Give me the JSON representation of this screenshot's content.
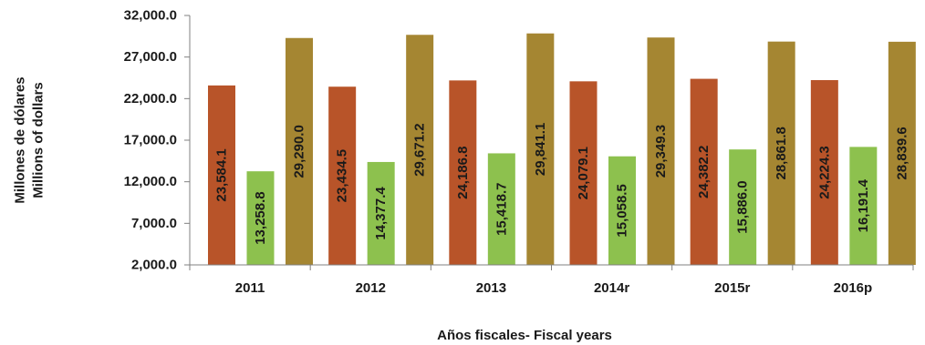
{
  "chart_data": {
    "type": "bar",
    "categories": [
      "2011",
      "2012",
      "2013",
      "2014r",
      "2015r",
      "2016p"
    ],
    "series": [
      {
        "values": [
          23584.1,
          23434.5,
          24186.8,
          24079.1,
          24382.2,
          24224.3
        ],
        "color": "#b85429"
      },
      {
        "values": [
          13258.8,
          14377.4,
          15418.7,
          15058.5,
          15886.0,
          16191.4
        ],
        "color": "#8dc14e"
      },
      {
        "values": [
          29290.0,
          29671.2,
          29841.1,
          29349.3,
          28861.8,
          28839.6
        ],
        "color": "#a58632"
      }
    ],
    "value_labels": [
      [
        "23,584.1",
        "23,434.5",
        "24,186.8",
        "24,079.1",
        "24,382.2",
        "24,224.3"
      ],
      [
        "13,258.8",
        "14,377.4",
        "15,418.7",
        "15,058.5",
        "15,886.0",
        "16,191.4"
      ],
      [
        "29,290.0",
        "29,671.2",
        "29,841.1",
        "29,349.3",
        "28,861.8",
        "28,839.6"
      ]
    ],
    "ylim": [
      2000,
      32000
    ],
    "yticks": [
      2000,
      7000,
      12000,
      17000,
      22000,
      27000,
      32000
    ],
    "ytick_labels": [
      "2,000.0",
      "7,000.0",
      "12,000.0",
      "17,000.0",
      "22,000.0",
      "27,000.0",
      "32,000.0"
    ],
    "ylabel_lines": [
      "Millones de dólares",
      "Millions of dollars"
    ],
    "xlabel": "Años fiscales- Fiscal years",
    "grid": false,
    "legend": "none"
  }
}
